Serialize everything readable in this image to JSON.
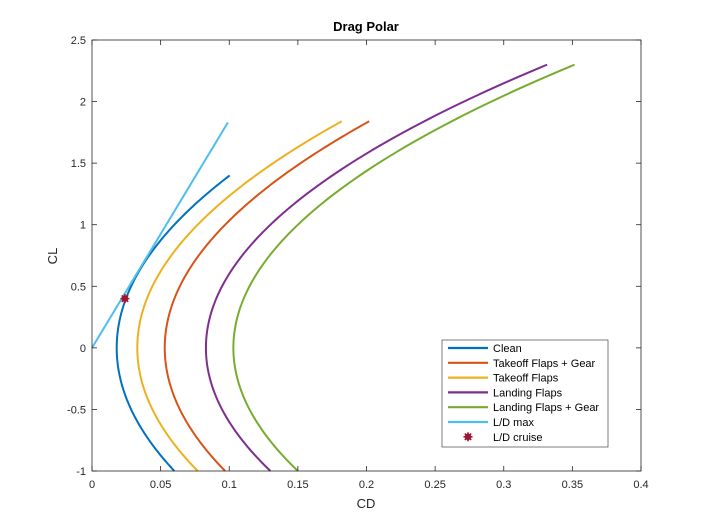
{
  "chart_data": {
    "type": "line",
    "title": "Drag Polar",
    "xlabel": "CD",
    "ylabel": "CL",
    "xlim": [
      0,
      0.4
    ],
    "ylim": [
      -1,
      2.5
    ],
    "xticks": [
      0,
      0.05,
      0.1,
      0.15,
      0.2,
      0.25,
      0.3,
      0.35,
      0.4
    ],
    "xtick_labels": [
      "0",
      "0.05",
      "0.1",
      "0.15",
      "0.2",
      "0.25",
      "0.3",
      "0.35",
      "0.4"
    ],
    "yticks": [
      -1,
      -0.5,
      0,
      0.5,
      1,
      1.5,
      2,
      2.5
    ],
    "ytick_labels": [
      "-1",
      "-0.5",
      "0",
      "0.5",
      "1",
      "1.5",
      "2",
      "2.5"
    ],
    "grid": false,
    "legend_position": "bottom-right",
    "series": [
      {
        "name": "Clean",
        "kind": "polar",
        "cd0": 0.018,
        "k": 0.042,
        "cl_min": -1.0,
        "cl_max": 1.4,
        "color": "#0072BD"
      },
      {
        "name": "Takeoff Flaps + Gear",
        "kind": "polar",
        "cd0": 0.053,
        "k": 0.044,
        "cl_min": -1.0,
        "cl_max": 1.84,
        "color": "#D95319"
      },
      {
        "name": "Takeoff Flaps",
        "kind": "polar",
        "cd0": 0.033,
        "k": 0.044,
        "cl_min": -1.0,
        "cl_max": 1.84,
        "color": "#EDB120"
      },
      {
        "name": "Landing Flaps",
        "kind": "polar",
        "cd0": 0.083,
        "k": 0.047,
        "cl_min": -1.0,
        "cl_max": 2.3,
        "color": "#7E2F8E"
      },
      {
        "name": "Landing Flaps + Gear",
        "kind": "polar",
        "cd0": 0.103,
        "k": 0.047,
        "cl_min": -1.0,
        "cl_max": 2.3,
        "color": "#77AC30"
      },
      {
        "name": "L/D max",
        "kind": "line",
        "x": [
          0,
          0.099
        ],
        "y": [
          0,
          1.83
        ],
        "color": "#4DBEEE"
      },
      {
        "name": "L/D cruise",
        "kind": "marker",
        "x": [
          0.024
        ],
        "y": [
          0.4
        ],
        "color": "#A2142F"
      }
    ]
  }
}
